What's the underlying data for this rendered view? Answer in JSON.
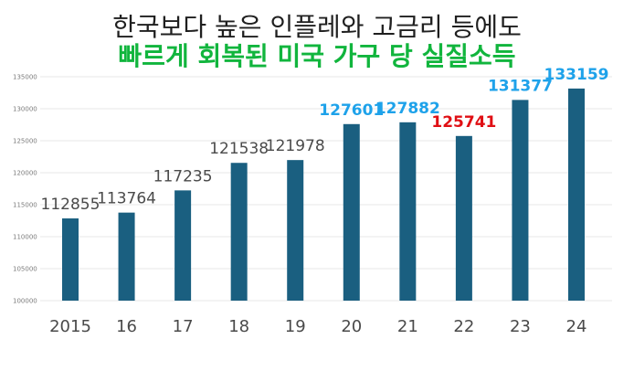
{
  "titles": {
    "line1": "한국보다 높은 인플레와 고금리 등에도",
    "line2": "빠르게 회복된 미국 가구 당 실질소득"
  },
  "colors": {
    "bar": "#1a5f80",
    "title_line2": "#11b53d",
    "label_normal": "#4a4a4a",
    "label_highlight": "#1ea2ea",
    "label_negative": "#e00f14"
  },
  "chart_data": {
    "type": "bar",
    "title": "",
    "xlabel": "",
    "ylabel": "",
    "ylim": [
      100000,
      135000
    ],
    "y_ticks": [
      100000,
      105000,
      110000,
      115000,
      120000,
      125000,
      130000,
      135000
    ],
    "grid": true,
    "categories": [
      "2015",
      "16",
      "17",
      "18",
      "19",
      "20",
      "21",
      "22",
      "23",
      "24"
    ],
    "values": [
      112855,
      113764,
      117235,
      121538,
      121978,
      127601,
      127882,
      125741,
      131377,
      133159
    ],
    "value_label_styles": [
      "normal",
      "normal",
      "normal",
      "normal",
      "normal",
      "highlight",
      "highlight",
      "negative",
      "highlight",
      "highlight"
    ]
  }
}
